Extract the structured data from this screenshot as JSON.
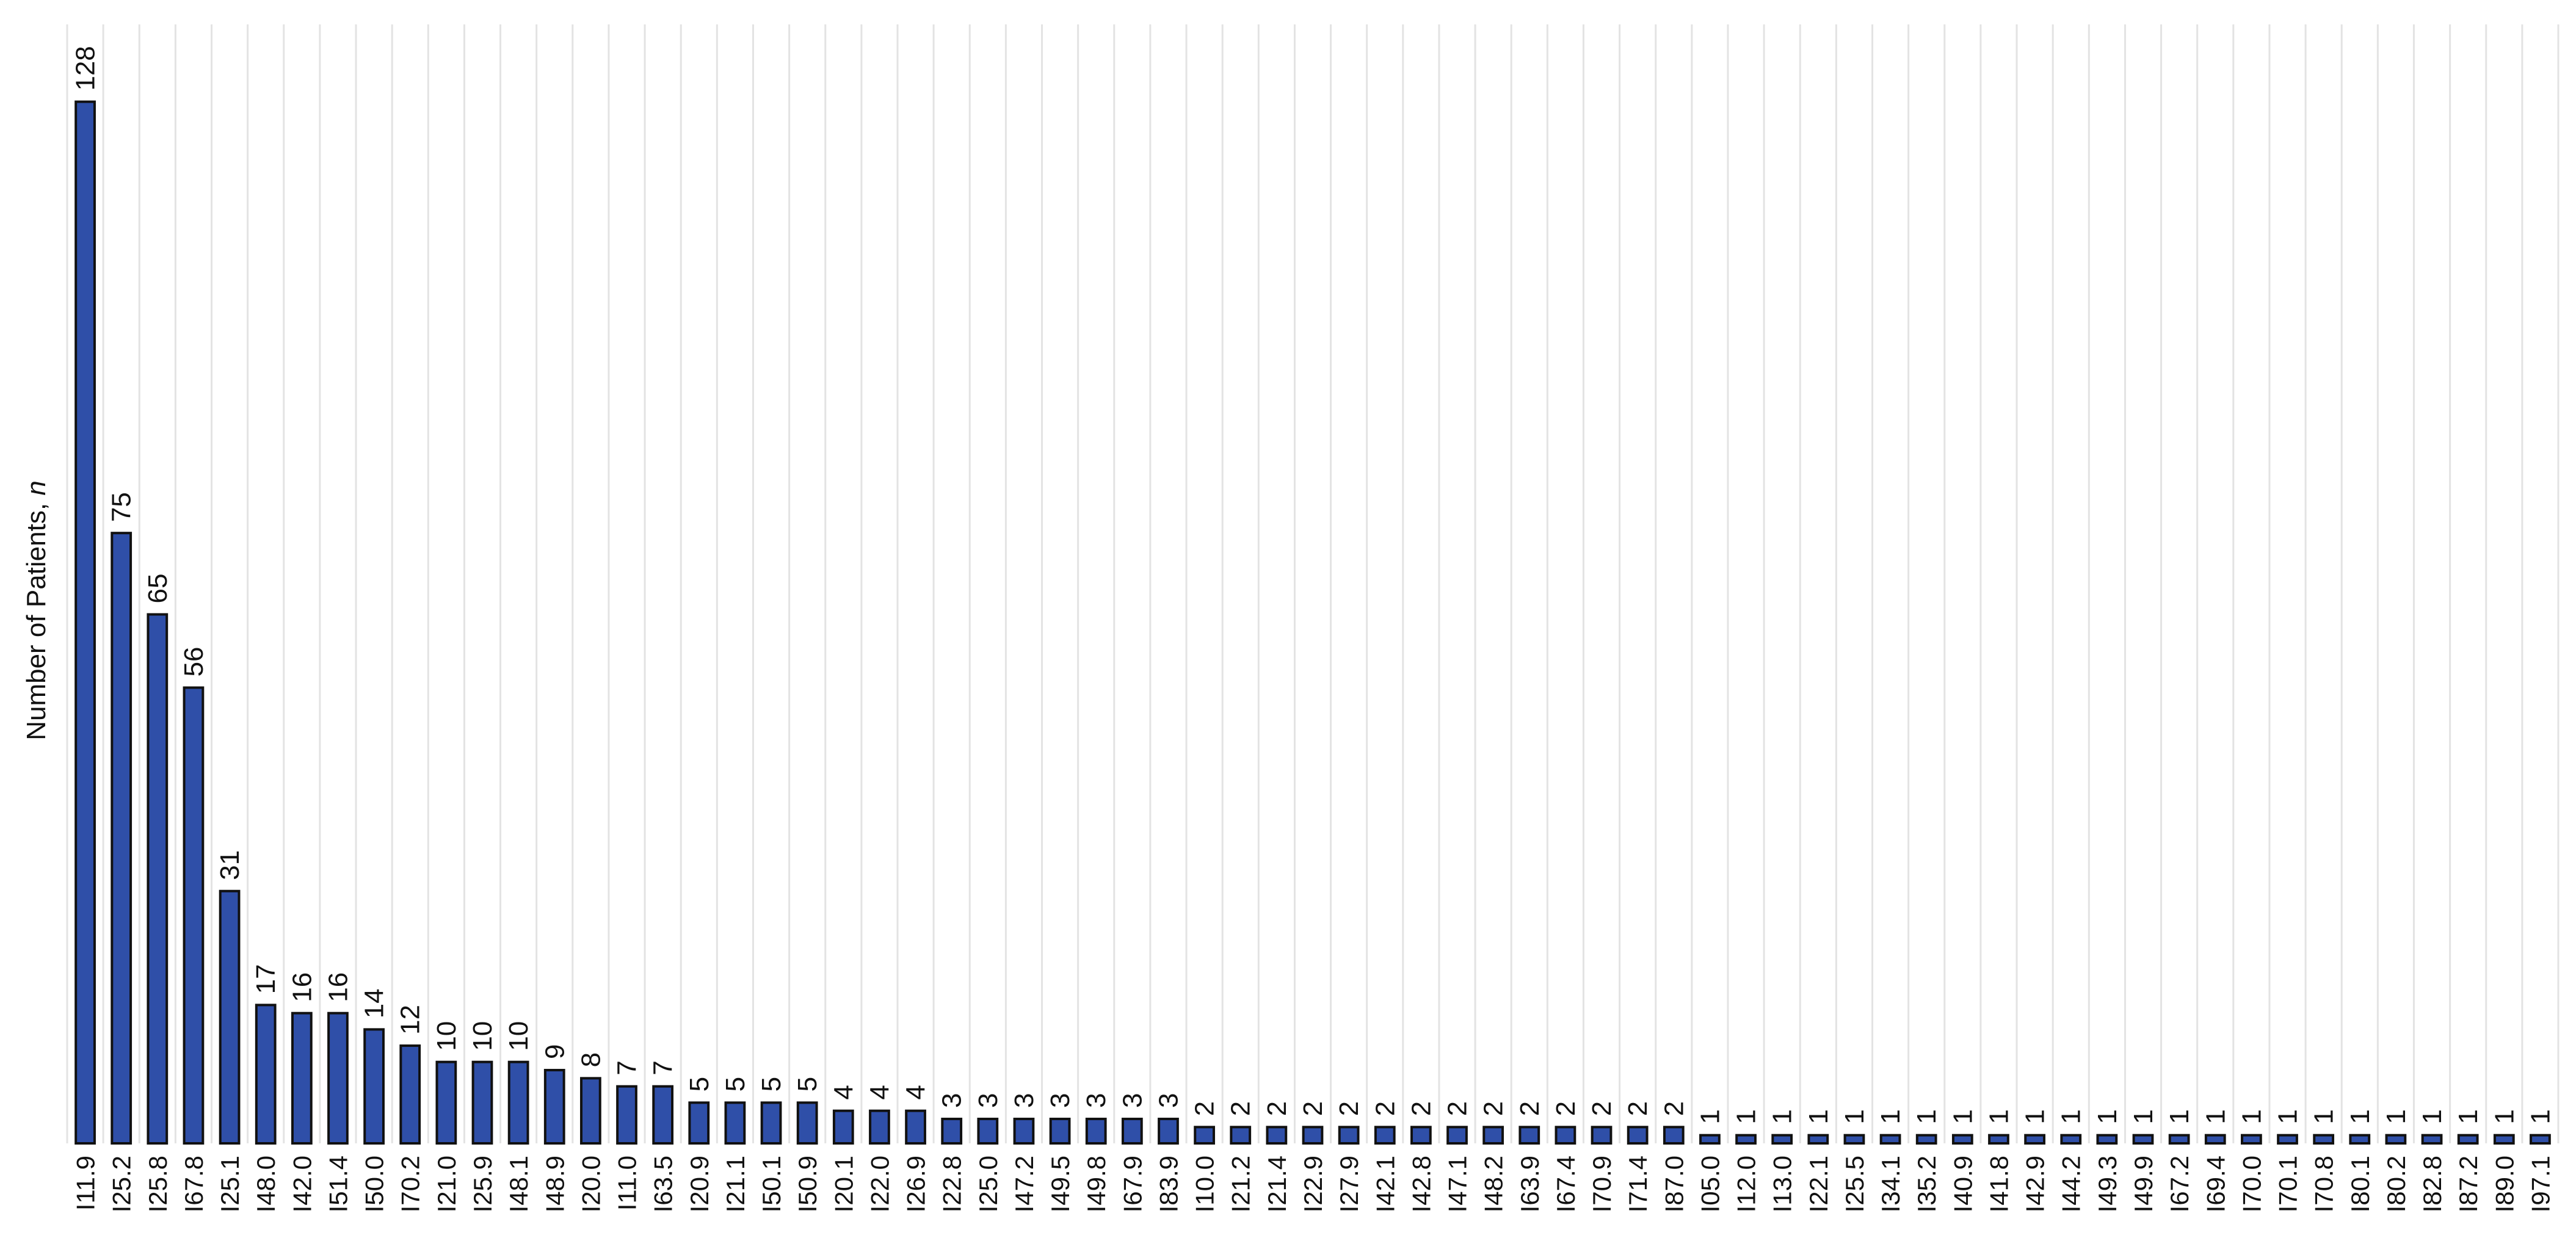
{
  "chart_data": {
    "type": "bar",
    "ylabel_prefix": "Number of Patients, ",
    "ylabel_var": "n",
    "xlabel": "",
    "title": "",
    "grid": "vertical",
    "ylim": [
      0,
      136
    ],
    "bar_color": "#2f4fa8",
    "bar_edge_color": "#111111",
    "grid_color": "#e3e3e3",
    "categories": [
      "I11.9",
      "I25.2",
      "I25.8",
      "I67.8",
      "I25.1",
      "I48.0",
      "I42.0",
      "I51.4",
      "I50.0",
      "I70.2",
      "I21.0",
      "I25.9",
      "I48.1",
      "I48.9",
      "I20.0",
      "I11.0",
      "I63.5",
      "I20.9",
      "I21.1",
      "I50.1",
      "I50.9",
      "I20.1",
      "I22.0",
      "I26.9",
      "I22.8",
      "I25.0",
      "I47.2",
      "I49.5",
      "I49.8",
      "I67.9",
      "I83.9",
      "I10.0",
      "I21.2",
      "I21.4",
      "I22.9",
      "I27.9",
      "I42.1",
      "I42.8",
      "I47.1",
      "I48.2",
      "I63.9",
      "I67.4",
      "I70.9",
      "I71.4",
      "I87.0",
      "I05.0",
      "I12.0",
      "I13.0",
      "I22.1",
      "I25.5",
      "I34.1",
      "I35.2",
      "I40.9",
      "I41.8",
      "I42.9",
      "I44.2",
      "I49.3",
      "I49.9",
      "I67.2",
      "I69.4",
      "I70.0",
      "I70.1",
      "I70.8",
      "I80.1",
      "I80.2",
      "I82.8",
      "I87.2",
      "I89.0",
      "I97.1"
    ],
    "values": [
      128,
      75,
      65,
      56,
      31,
      17,
      16,
      16,
      14,
      12,
      10,
      10,
      10,
      9,
      8,
      7,
      7,
      5,
      5,
      5,
      5,
      4,
      4,
      4,
      3,
      3,
      3,
      3,
      3,
      3,
      3,
      2,
      2,
      2,
      2,
      2,
      2,
      2,
      2,
      2,
      2,
      2,
      2,
      2,
      2,
      1,
      1,
      1,
      1,
      1,
      1,
      1,
      1,
      1,
      1,
      1,
      1,
      1,
      1,
      1,
      1,
      1,
      1,
      1,
      1,
      1,
      1,
      1,
      1
    ]
  }
}
